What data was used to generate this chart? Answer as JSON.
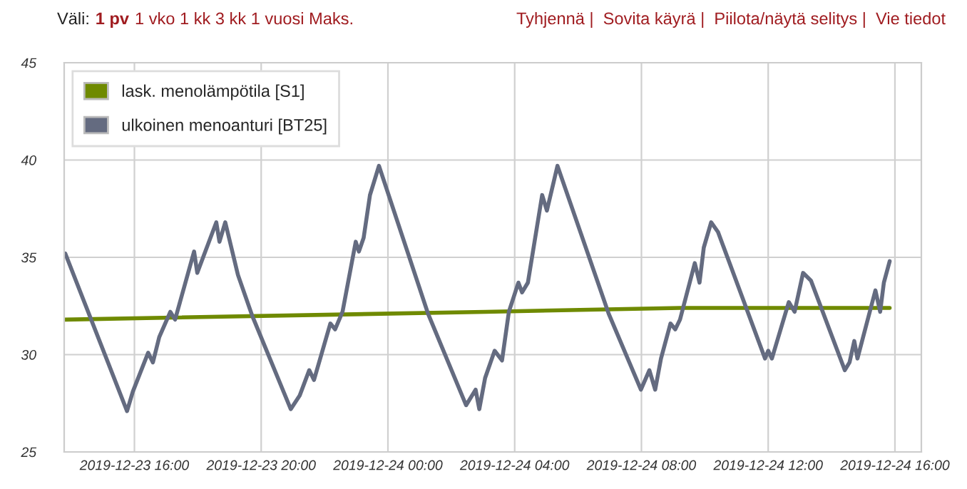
{
  "chart_data": {
    "type": "line",
    "annotations": [
      "Väli:",
      "1 pv",
      "1 vko 1 kk 3 kk 1 vuosi Maks.",
      "Tyhjennä |  Sovita käyrä |  Piilota/näytä selitys |  Vie tiedot"
    ],
    "xlim": [
      "2019-12-23T13:47",
      "2019-12-24T16:50"
    ],
    "xticks": [
      {
        "value": "2019-12-23T16:00",
        "label": "2019-12-23 16:00"
      },
      {
        "value": "2019-12-23T20:00",
        "label": "2019-12-23 20:00"
      },
      {
        "value": "2019-12-24T00:00",
        "label": "2019-12-24 00:00"
      },
      {
        "value": "2019-12-24T04:00",
        "label": "2019-12-24 04:00"
      },
      {
        "value": "2019-12-24T08:00",
        "label": "2019-12-24 08:00"
      },
      {
        "value": "2019-12-24T12:00",
        "label": "2019-12-24 12:00"
      },
      {
        "value": "2019-12-24T16:00",
        "label": "2019-12-24 16:00"
      }
    ],
    "ylim": [
      25,
      45
    ],
    "yticks": [
      25,
      30,
      35,
      40,
      45
    ],
    "grid": true,
    "legend": "top left",
    "line_style": "solid",
    "marker": "none",
    "series": [
      {
        "name": "lask. menolämpötila [S1]",
        "color": "#6f8a00",
        "x": [
          "2019-12-23T13:49",
          "2019-12-24T03:04",
          "2019-12-24T09:13",
          "2019-12-24T15:50"
        ],
        "values": [
          31.8,
          32.2,
          32.4,
          32.4
        ]
      },
      {
        "name": "ulkoinen menoanturi [BT25]",
        "color": "#646b80",
        "x": [
          "2019-12-23T13:49",
          "2019-12-23T14:28",
          "2019-12-23T15:46",
          "2019-12-23T15:57",
          "2019-12-23T16:26",
          "2019-12-23T16:35",
          "2019-12-23T16:47",
          "2019-12-23T17:08",
          "2019-12-23T17:17",
          "2019-12-23T17:53",
          "2019-12-23T17:59",
          "2019-12-23T18:35",
          "2019-12-23T18:41",
          "2019-12-23T18:52",
          "2019-12-23T19:16",
          "2019-12-23T19:43",
          "2019-12-23T20:56",
          "2019-12-23T21:13",
          "2019-12-23T21:31",
          "2019-12-23T21:40",
          "2019-12-23T22:11",
          "2019-12-23T22:20",
          "2019-12-23T22:34",
          "2019-12-23T22:59",
          "2019-12-23T23:05",
          "2019-12-23T23:14",
          "2019-12-23T23:26",
          "2019-12-23T23:43",
          "2019-12-24T01:16",
          "2019-12-24T02:28",
          "2019-12-24T02:46",
          "2019-12-24T02:53",
          "2019-12-24T03:04",
          "2019-12-24T03:22",
          "2019-12-24T03:36",
          "2019-12-24T03:49",
          "2019-12-24T04:07",
          "2019-12-24T04:14",
          "2019-12-24T04:25",
          "2019-12-24T04:52",
          "2019-12-24T05:01",
          "2019-12-24T05:21",
          "2019-12-24T06:58",
          "2019-12-24T07:59",
          "2019-12-24T08:15",
          "2019-12-24T08:26",
          "2019-12-24T08:37",
          "2019-12-24T08:55",
          "2019-12-24T09:04",
          "2019-12-24T09:13",
          "2019-12-24T09:41",
          "2019-12-24T09:50",
          "2019-12-24T09:58",
          "2019-12-24T10:12",
          "2019-12-24T10:25",
          "2019-12-24T11:54",
          "2019-12-24T12:00",
          "2019-12-24T12:07",
          "2019-12-24T12:39",
          "2019-12-24T12:50",
          "2019-12-24T13:06",
          "2019-12-24T13:21",
          "2019-12-24T14:25",
          "2019-12-24T14:34",
          "2019-12-24T14:43",
          "2019-12-24T14:49",
          "2019-12-24T15:23",
          "2019-12-24T15:32",
          "2019-12-24T15:39",
          "2019-12-24T15:50"
        ],
        "values": [
          35.2,
          32.5,
          27.1,
          28.1,
          30.1,
          29.6,
          30.9,
          32.2,
          31.8,
          35.3,
          34.2,
          36.8,
          35.8,
          36.8,
          34.1,
          32.0,
          27.2,
          27.9,
          29.2,
          28.7,
          31.6,
          31.3,
          32.2,
          35.8,
          35.3,
          36.0,
          38.2,
          39.7,
          32.1,
          27.4,
          28.2,
          27.2,
          28.8,
          30.2,
          29.7,
          32.2,
          33.7,
          33.2,
          33.7,
          38.2,
          37.4,
          39.7,
          32.1,
          28.2,
          29.2,
          28.2,
          29.8,
          31.6,
          31.3,
          31.8,
          34.7,
          33.7,
          35.5,
          36.8,
          36.3,
          29.8,
          30.2,
          29.8,
          32.7,
          32.2,
          34.2,
          33.8,
          29.2,
          29.6,
          30.7,
          29.8,
          33.3,
          32.2,
          33.7,
          34.8
        ]
      }
    ]
  }
}
